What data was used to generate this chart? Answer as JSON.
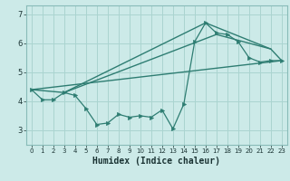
{
  "title": "",
  "xlabel": "Humidex (Indice chaleur)",
  "bg_color": "#cceae8",
  "line_color": "#2e7d72",
  "grid_color": "#aad4d0",
  "xlim": [
    -0.5,
    23.5
  ],
  "ylim": [
    2.5,
    7.3
  ],
  "xticks": [
    0,
    1,
    2,
    3,
    4,
    5,
    6,
    7,
    8,
    9,
    10,
    11,
    12,
    13,
    14,
    15,
    16,
    17,
    18,
    19,
    20,
    21,
    22,
    23
  ],
  "yticks": [
    3,
    4,
    5,
    6,
    7
  ],
  "line1_x": [
    0,
    1,
    2,
    3,
    4,
    5,
    6,
    7,
    8,
    9,
    10,
    11,
    12,
    13,
    14,
    15,
    16,
    17,
    18,
    19,
    20,
    21,
    22,
    23
  ],
  "line1_y": [
    4.4,
    4.05,
    4.05,
    4.3,
    4.2,
    3.75,
    3.2,
    3.25,
    3.55,
    3.45,
    3.5,
    3.45,
    3.7,
    3.05,
    3.9,
    6.05,
    6.7,
    6.35,
    6.3,
    6.05,
    5.5,
    5.35,
    5.4,
    5.4
  ],
  "line2_x": [
    0,
    3,
    16,
    22,
    23
  ],
  "line2_y": [
    4.4,
    4.3,
    6.7,
    5.8,
    5.4
  ],
  "line3_x": [
    0,
    23
  ],
  "line3_y": [
    4.4,
    5.4
  ],
  "line4_x": [
    3,
    17,
    22
  ],
  "line4_y": [
    4.3,
    6.3,
    5.8
  ]
}
